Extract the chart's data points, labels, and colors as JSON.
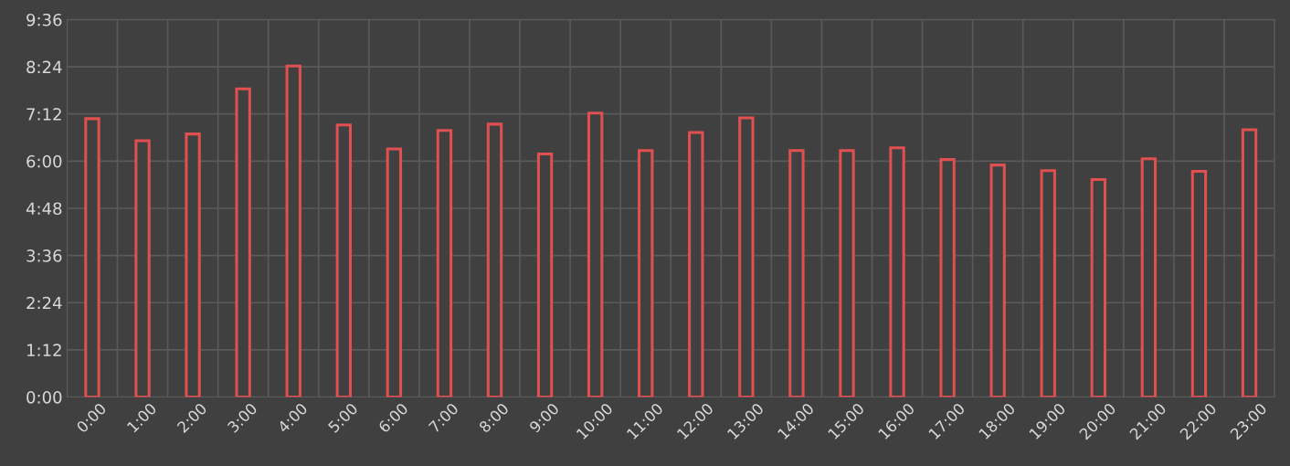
{
  "chart_data": {
    "type": "bar",
    "categories": [
      "0:00",
      "1:00",
      "2:00",
      "3:00",
      "4:00",
      "5:00",
      "6:00",
      "7:00",
      "8:00",
      "9:00",
      "10:00",
      "11:00",
      "12:00",
      "13:00",
      "14:00",
      "15:00",
      "16:00",
      "17:00",
      "18:00",
      "19:00",
      "20:00",
      "21:00",
      "22:00",
      "23:00"
    ],
    "values": [
      7.08,
      6.52,
      6.69,
      7.84,
      8.42,
      6.92,
      6.31,
      6.78,
      6.94,
      6.18,
      7.22,
      6.27,
      6.73,
      7.1,
      6.27,
      6.27,
      6.34,
      6.04,
      5.9,
      5.76,
      5.53,
      6.06,
      5.74,
      6.8
    ],
    "color": "#e05050",
    "ylim": [
      0,
      9.6
    ],
    "yticks": [
      {
        "value": 0,
        "label": "0:00"
      },
      {
        "value": 1.2,
        "label": "1:12"
      },
      {
        "value": 2.4,
        "label": "2:24"
      },
      {
        "value": 3.6,
        "label": "3:36"
      },
      {
        "value": 4.8,
        "label": "4:48"
      },
      {
        "value": 6,
        "label": "6:00"
      },
      {
        "value": 7.2,
        "label": "7:12"
      },
      {
        "value": 8.4,
        "label": "8:24"
      },
      {
        "value": 9.6,
        "label": "9:36"
      }
    ],
    "grid": true,
    "legend": false
  }
}
